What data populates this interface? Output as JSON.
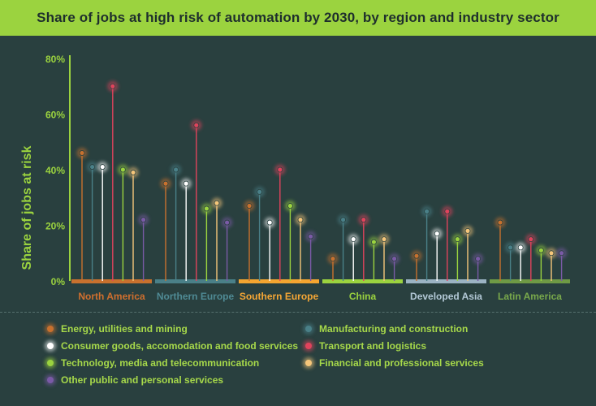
{
  "title": "Share of jobs at high risk of automation by 2030, by region and industry sector",
  "chart_data": {
    "type": "lollipop",
    "ylabel": "Share of jobs at risk",
    "ylim": [
      0,
      80
    ],
    "yticks": [
      "0%",
      "20%",
      "40%",
      "60%",
      "80%"
    ],
    "categories": [
      "North America",
      "Northern Europe",
      "Southern Europe",
      "China",
      "Developed Asia",
      "Latin America"
    ],
    "category_colors": [
      "#c8712e",
      "#4a8088",
      "#f4a530",
      "#9bd33f",
      "#9bb3c3",
      "#6f9a45"
    ],
    "category_label_colors": [
      "#d06f2e",
      "#4f8a94",
      "#f6a735",
      "#9bd33f",
      "#b3c8d6",
      "#79a94b"
    ],
    "series": [
      {
        "name": "Energy, utilities and mining",
        "color": "#c8712e",
        "values": [
          46,
          35,
          27,
          8,
          9,
          21
        ]
      },
      {
        "name": "Manufacturing and construction",
        "color": "#4a8088",
        "values": [
          41,
          40,
          32,
          22,
          25,
          12
        ]
      },
      {
        "name": "Consumer goods, accomodation and food services",
        "color": "#ffffff",
        "values": [
          41,
          35,
          21,
          15,
          17,
          12
        ]
      },
      {
        "name": "Transport and logistics",
        "color": "#e0435c",
        "values": [
          70,
          56,
          40,
          22,
          25,
          15
        ]
      },
      {
        "name": "Technology, media and telecommunication",
        "color": "#9bd33f",
        "values": [
          40,
          26,
          27,
          14,
          15,
          11
        ]
      },
      {
        "name": "Financial and professional services",
        "color": "#f6c67a",
        "values": [
          39,
          28,
          22,
          15,
          18,
          10
        ]
      },
      {
        "name": "Other public and personal services",
        "color": "#7a5aa6",
        "values": [
          22,
          21,
          16,
          8,
          8,
          10
        ]
      }
    ],
    "grid": false,
    "legend_position": "bottom"
  }
}
